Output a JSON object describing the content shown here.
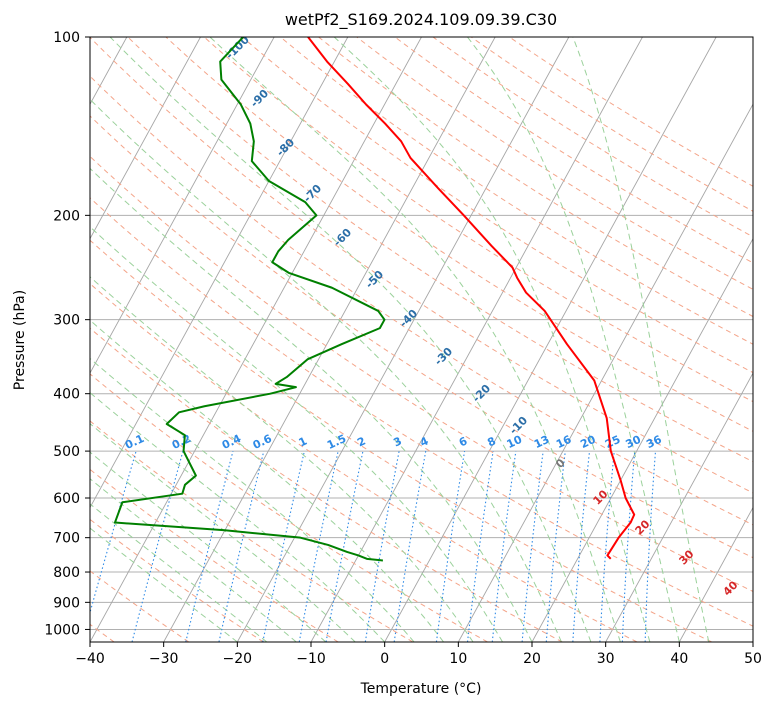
{
  "chart_data": {
    "type": "line",
    "subtype": "skew-t log-p diagram",
    "title": "wetPf2_S169.2024.109.09.39.C30",
    "xlabel": "Temperature (°C)",
    "ylabel": "Pressure (hPa)",
    "xlim": [
      -40,
      50
    ],
    "ylim": [
      1050,
      100
    ],
    "y_scale": "log",
    "grid": true,
    "x_ticks": [
      "−40",
      "−30",
      "−20",
      "−10",
      "0",
      "10",
      "20",
      "30",
      "40",
      "50"
    ],
    "y_ticks": [
      "100",
      "200",
      "300",
      "400",
      "500",
      "600",
      "700",
      "800",
      "900",
      "1000"
    ],
    "x_tick_values": [
      -40,
      -30,
      -20,
      -10,
      0,
      10,
      20,
      30,
      40,
      50
    ],
    "y_tick_values": [
      100,
      200,
      300,
      400,
      500,
      600,
      700,
      800,
      900,
      1000
    ],
    "series": [
      {
        "color": "#ff0000",
        "points": [
          [
            760,
            24.5
          ],
          [
            750,
            23.8
          ],
          [
            700,
            24.0
          ],
          [
            660,
            24.5
          ],
          [
            640,
            24.4
          ],
          [
            600,
            22.0
          ],
          [
            560,
            20.0
          ],
          [
            500,
            16.5
          ],
          [
            440,
            13.5
          ],
          [
            380,
            9.0
          ],
          [
            330,
            2.6
          ],
          [
            290,
            -2.9
          ],
          [
            270,
            -6.8
          ],
          [
            255,
            -9.1
          ],
          [
            245,
            -10.5
          ],
          [
            225,
            -15.0
          ],
          [
            200,
            -21.0
          ],
          [
            180,
            -26.5
          ],
          [
            160,
            -32.5
          ],
          [
            150,
            -35.0
          ],
          [
            140,
            -38.5
          ],
          [
            130,
            -42.5
          ],
          [
            120,
            -46.5
          ],
          [
            110,
            -51.0
          ],
          [
            100,
            -55.4
          ]
        ]
      },
      {
        "color": "#008000",
        "points": [
          [
            765,
            -6.3
          ],
          [
            760,
            -8.6
          ],
          [
            750,
            -10.0
          ],
          [
            740,
            -11.8
          ],
          [
            720,
            -14.9
          ],
          [
            700,
            -19.2
          ],
          [
            680,
            -30.0
          ],
          [
            660,
            -45.5
          ],
          [
            610,
            -46.0
          ],
          [
            590,
            -38.5
          ],
          [
            570,
            -38.8
          ],
          [
            550,
            -38.0
          ],
          [
            500,
            -41.5
          ],
          [
            470,
            -42.5
          ],
          [
            450,
            -45.8
          ],
          [
            430,
            -45.0
          ],
          [
            420,
            -42.0
          ],
          [
            400,
            -34.0
          ],
          [
            390,
            -31.0
          ],
          [
            385,
            -34.0
          ],
          [
            375,
            -33.0
          ],
          [
            350,
            -31.5
          ],
          [
            330,
            -28.0
          ],
          [
            310,
            -24.0
          ],
          [
            300,
            -24.0
          ],
          [
            290,
            -25.5
          ],
          [
            265,
            -33.5
          ],
          [
            250,
            -40.5
          ],
          [
            240,
            -43.5
          ],
          [
            230,
            -43.5
          ],
          [
            220,
            -43.0
          ],
          [
            200,
            -41.0
          ],
          [
            190,
            -43.5
          ],
          [
            175,
            -50.0
          ],
          [
            162,
            -53.8
          ],
          [
            150,
            -55.0
          ],
          [
            140,
            -56.8
          ],
          [
            130,
            -59.5
          ],
          [
            118,
            -64.0
          ],
          [
            110,
            -65.5
          ],
          [
            100,
            -64.2
          ]
        ]
      }
    ],
    "reference_lines": {
      "dry_adiabats_C": [
        -100,
        -90,
        -80,
        -70,
        -60,
        -50,
        -40,
        -30,
        -20,
        -10,
        0,
        10,
        20,
        30,
        40
      ],
      "moist_adiabats_C": [
        -20,
        -10,
        0,
        10,
        20,
        30,
        40
      ],
      "mixing_ratio_g_per_kg": [
        "0.1",
        "0.2",
        "0.4",
        "0.6",
        "1",
        "1.5",
        "2",
        "3",
        "4",
        "6",
        "8",
        "10",
        "13",
        "16",
        "20",
        "25",
        "30",
        "36"
      ],
      "dry_adiabat_labels": [
        "-100",
        "-90",
        "-80",
        "-70",
        "-60",
        "-50",
        "-40",
        "-30",
        "-20",
        "-10"
      ],
      "moist_adiabat_labels": [
        "0",
        "10",
        "20",
        "30",
        "40"
      ]
    }
  },
  "colors": {
    "temperature": "#ff0000",
    "dewpoint": "#008000",
    "isotherm": "#a6a6a6",
    "dry_adiabat": "#f4a58a",
    "moist_adiabat": "#9bd19b",
    "mixing_ratio": "#2e8ae6",
    "dry_label": "#2c6fa8",
    "moist_label": "#d62728",
    "zero_label": "#777777"
  }
}
